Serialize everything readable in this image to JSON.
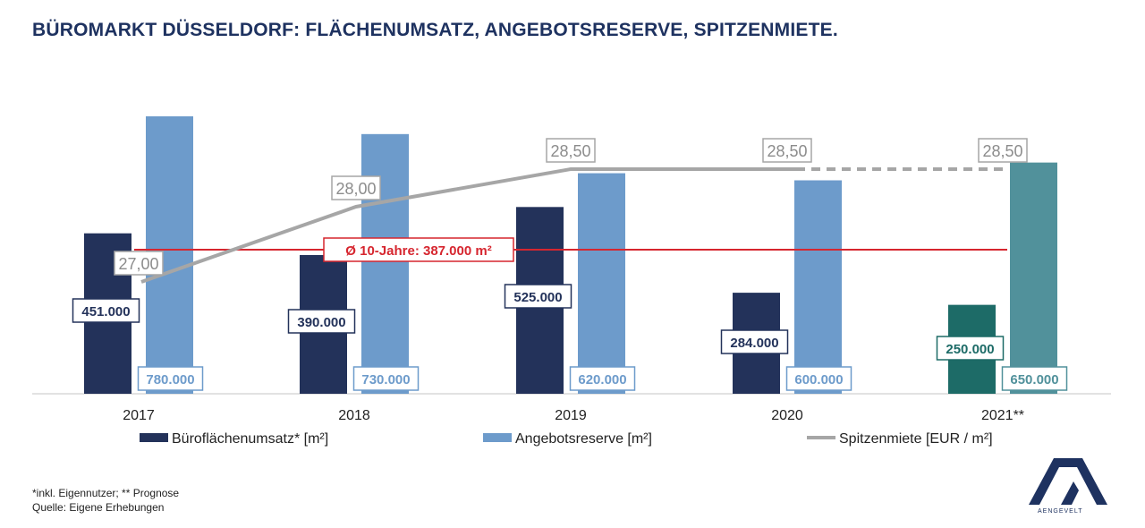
{
  "header": {
    "title": "BÜROMARKT DÜSSELDORF: FLÄCHENUMSATZ, ANGEBOTSRESERVE, SPITZENMIETE."
  },
  "footnotes": {
    "line1": "*inkl. Eigennutzer; ** Prognose",
    "line2": "Quelle: Eigene Erhebungen"
  },
  "logo": {
    "text": "AENGEVELT"
  },
  "colors": {
    "umsatz": "#23325a",
    "umsatz_forecast": "#1d6b67",
    "reserve": "#6d9bcb",
    "reserve_forecast": "#51919b",
    "miete": "#a6a6a6",
    "average": "#d6262f"
  },
  "chart_data": {
    "type": "bar",
    "categories": [
      "2017",
      "2018",
      "2019",
      "2020",
      "2021**"
    ],
    "series": [
      {
        "name": "Büroflächenumsatz* [m²]",
        "kind": "bar",
        "values": [
          451000,
          390000,
          525000,
          284000,
          250000
        ],
        "labels": [
          "451.000",
          "390.000",
          "525.000",
          "284.000",
          "250.000"
        ]
      },
      {
        "name": "Angebotsreserve [m²]",
        "kind": "bar",
        "values": [
          780000,
          730000,
          620000,
          600000,
          650000
        ],
        "labels": [
          "780.000",
          "730.000",
          "620.000",
          "600.000",
          "650.000"
        ]
      },
      {
        "name": "Spitzenmiete [EUR / m²]",
        "kind": "line",
        "values": [
          27.0,
          28.0,
          28.5,
          28.5,
          28.5
        ],
        "labels": [
          "27,00",
          "28,00",
          "28,50",
          "28,50",
          "28,50"
        ],
        "forecast_from_index": 3
      }
    ],
    "reference_line": {
      "value": 387000,
      "label": "Ø 10-Jahre: 387.000 m²"
    },
    "bar_ylim": [
      0,
      800000
    ],
    "line_ylim": [
      25.0,
      30.0
    ],
    "legend_position": "bottom"
  }
}
